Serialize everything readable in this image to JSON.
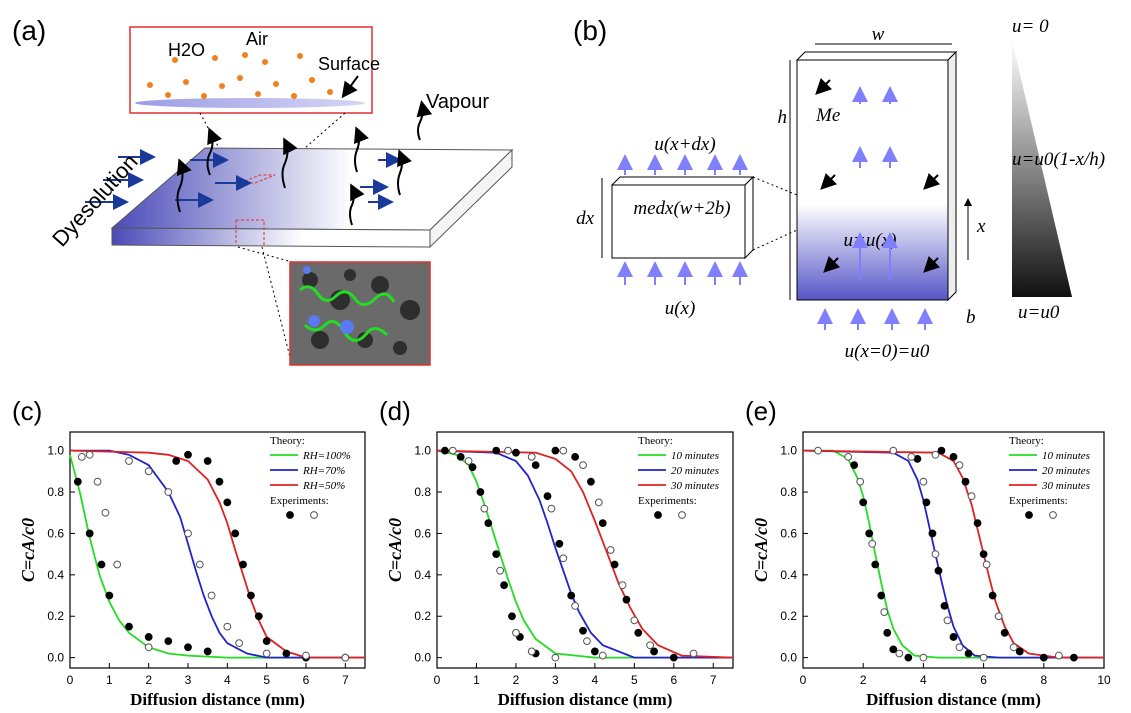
{
  "panels": {
    "a": {
      "label": "(a)",
      "h2o": "H2O",
      "air": "Air",
      "surface": "Surface",
      "vapour": "Vapour",
      "dye": "Dyesolution"
    },
    "b": {
      "label": "(b)",
      "w": "w",
      "h": "h",
      "me": "Me",
      "uxdx": "u(x+dx)",
      "dx": "dx",
      "element": "medx(w+2b)",
      "uux": "u=u(x)",
      "x": "x",
      "ux": "u(x)",
      "b": "b",
      "u0": "u(x=0)=u0",
      "top": "u= 0",
      "mid": "u=u0(1-x/h)",
      "bottom": "u=u0"
    }
  },
  "chart_data": [
    {
      "type": "line",
      "label": "(c)",
      "xlabel": "Diffusion distance (mm)",
      "ylabel": "C=cA/c0",
      "xlim": [
        0,
        7.5
      ],
      "ylim": [
        -0.05,
        1.09
      ],
      "xticks": [
        0,
        1,
        2,
        3,
        4,
        5,
        6,
        7
      ],
      "yticks": [
        {
          "value": 0,
          "label": "0.0"
        },
        {
          "value": 0.2,
          "label": "0.2"
        },
        {
          "value": 0.4,
          "label": "0.4"
        },
        {
          "value": 0.6,
          "label": "0.6"
        },
        {
          "value": 0.8,
          "label": "0.8"
        },
        {
          "value": 1,
          "label": "1.0"
        }
      ],
      "legend": {
        "position": "upper right",
        "theory_title": "Theory:",
        "experiments_title": "Experiments:"
      },
      "series": [
        {
          "name": "RH=100%",
          "kind": "line",
          "color": "#22dd22",
          "x": [
            0,
            0.25,
            0.5,
            0.75,
            1,
            1.25,
            1.5,
            2,
            2.5,
            3,
            4,
            5,
            6,
            7.5
          ],
          "values": [
            0.98,
            0.8,
            0.58,
            0.4,
            0.27,
            0.18,
            0.12,
            0.05,
            0.02,
            0.01,
            0,
            0,
            0,
            0
          ]
        },
        {
          "name": "RH=70%",
          "kind": "line",
          "color": "#2222cc",
          "x": [
            0,
            1,
            1.5,
            2,
            2.5,
            2.8,
            3,
            3.2,
            3.4,
            3.6,
            3.8,
            4,
            4.5,
            5,
            7.5
          ],
          "values": [
            1,
            1,
            0.98,
            0.93,
            0.8,
            0.68,
            0.55,
            0.42,
            0.3,
            0.2,
            0.12,
            0.07,
            0.02,
            0,
            0
          ]
        },
        {
          "name": "RH=50%",
          "kind": "line",
          "color": "#dd2222",
          "x": [
            0,
            2,
            2.5,
            3,
            3.5,
            3.8,
            4,
            4.2,
            4.4,
            4.6,
            4.8,
            5,
            5.5,
            6,
            7.5
          ],
          "values": [
            1,
            0.99,
            0.98,
            0.95,
            0.86,
            0.75,
            0.65,
            0.52,
            0.4,
            0.28,
            0.18,
            0.1,
            0.03,
            0,
            0
          ]
        },
        {
          "kind": "scatter",
          "marker": "filled",
          "color": "#000000",
          "x": [
            0.2,
            0.5,
            0.8,
            1,
            1.5,
            2,
            2.5,
            3,
            3.5,
            2.7,
            3,
            3.5,
            3.8,
            4,
            4.2,
            4.4,
            4.6,
            4.8,
            5,
            5.5,
            6,
            7
          ],
          "values": [
            0.85,
            0.6,
            0.45,
            0.3,
            0.15,
            0.1,
            0.08,
            0.05,
            0.03,
            0.95,
            0.98,
            0.95,
            0.85,
            0.75,
            0.6,
            0.45,
            0.3,
            0.2,
            0.08,
            0.02,
            0,
            0
          ]
        },
        {
          "kind": "scatter",
          "marker": "open",
          "color": "#555555",
          "x": [
            0.3,
            0.5,
            0.7,
            0.9,
            1.2,
            2,
            1.5,
            2,
            2.5,
            3,
            3.3,
            3.6,
            4,
            4.3,
            5,
            6,
            7
          ],
          "values": [
            0.97,
            0.98,
            0.85,
            0.7,
            0.45,
            0.05,
            0.95,
            0.9,
            0.8,
            0.6,
            0.45,
            0.3,
            0.15,
            0.07,
            0.02,
            0.01,
            0
          ]
        }
      ]
    },
    {
      "type": "line",
      "label": "(d)",
      "xlabel": "Diffusion distance (mm)",
      "ylabel": "C=cA/c0",
      "xlim": [
        0,
        7.5
      ],
      "ylim": [
        -0.05,
        1.09
      ],
      "xticks": [
        0,
        1,
        2,
        3,
        4,
        5,
        6,
        7
      ],
      "yticks": [
        {
          "value": 0,
          "label": "0.0"
        },
        {
          "value": 0.2,
          "label": "0.2"
        },
        {
          "value": 0.4,
          "label": "0.4"
        },
        {
          "value": 0.6,
          "label": "0.6"
        },
        {
          "value": 0.8,
          "label": "0.8"
        },
        {
          "value": 1,
          "label": "1.0"
        }
      ],
      "legend": {
        "position": "upper right",
        "theory_title": "Theory:",
        "experiments_title": "Experiments:"
      },
      "series": [
        {
          "name": "10 minutes",
          "kind": "line",
          "color": "#22dd22",
          "x": [
            0,
            0.5,
            0.8,
            1,
            1.2,
            1.4,
            1.6,
            1.8,
            2,
            2.2,
            2.5,
            3,
            4,
            7.5
          ],
          "values": [
            1,
            0.98,
            0.93,
            0.85,
            0.74,
            0.62,
            0.5,
            0.38,
            0.27,
            0.18,
            0.09,
            0.02,
            0,
            0
          ]
        },
        {
          "name": "20 minutes",
          "kind": "line",
          "color": "#2222cc",
          "x": [
            0,
            1.5,
            2,
            2.3,
            2.6,
            2.8,
            3,
            3.2,
            3.4,
            3.6,
            3.9,
            4.2,
            5,
            7.5
          ],
          "values": [
            1,
            0.99,
            0.95,
            0.88,
            0.76,
            0.65,
            0.53,
            0.42,
            0.31,
            0.22,
            0.12,
            0.06,
            0,
            0
          ]
        },
        {
          "name": "30 minutes",
          "kind": "line",
          "color": "#dd2222",
          "x": [
            0,
            2.5,
            3,
            3.4,
            3.7,
            4,
            4.2,
            4.4,
            4.6,
            4.9,
            5.2,
            5.6,
            6.2,
            7.5
          ],
          "values": [
            1,
            0.99,
            0.96,
            0.9,
            0.8,
            0.66,
            0.56,
            0.46,
            0.36,
            0.24,
            0.14,
            0.06,
            0.01,
            0
          ]
        },
        {
          "kind": "scatter",
          "marker": "filled",
          "color": "#000000",
          "x": [
            0.2,
            0.6,
            0.9,
            1.1,
            1.3,
            1.5,
            1.7,
            1.9,
            2.1,
            2.5,
            1.5,
            2,
            2.5,
            2.8,
            3.1,
            3.4,
            3.7,
            4,
            3,
            3.5,
            3.9,
            4.2,
            4.5,
            4.8,
            5.1,
            5.5,
            6
          ],
          "values": [
            1,
            0.97,
            0.92,
            0.8,
            0.65,
            0.5,
            0.35,
            0.2,
            0.1,
            0.02,
            1,
            0.99,
            0.93,
            0.78,
            0.55,
            0.3,
            0.13,
            0.03,
            1,
            0.97,
            0.85,
            0.65,
            0.45,
            0.28,
            0.12,
            0.03,
            0
          ]
        },
        {
          "kind": "scatter",
          "marker": "open",
          "color": "#555555",
          "x": [
            0.4,
            0.8,
            1.2,
            1.6,
            2,
            2.4,
            3,
            1.8,
            2.4,
            2.9,
            3.2,
            3.5,
            3.8,
            4.2,
            3.2,
            3.7,
            4.1,
            4.4,
            4.7,
            5,
            5.4,
            6.5
          ],
          "values": [
            1,
            0.95,
            0.72,
            0.42,
            0.12,
            0.03,
            0,
            1,
            0.97,
            0.72,
            0.48,
            0.25,
            0.08,
            0.01,
            1,
            0.93,
            0.75,
            0.52,
            0.35,
            0.18,
            0.06,
            0.02
          ]
        }
      ]
    },
    {
      "type": "line",
      "label": "(e)",
      "xlabel": "Diffusion distance (mm)",
      "ylabel": "C=cA/c0",
      "xlim": [
        0,
        10
      ],
      "ylim": [
        -0.05,
        1.09
      ],
      "xticks": [
        0,
        2,
        4,
        6,
        8,
        10
      ],
      "yticks": [
        {
          "value": 0,
          "label": "0.0"
        },
        {
          "value": 0.2,
          "label": "0.2"
        },
        {
          "value": 0.4,
          "label": "0.4"
        },
        {
          "value": 0.6,
          "label": "0.6"
        },
        {
          "value": 0.8,
          "label": "0.8"
        },
        {
          "value": 1,
          "label": "1.0"
        }
      ],
      "legend": {
        "position": "upper right",
        "theory_title": "Theory:",
        "experiments_title": "Experiments:"
      },
      "series": [
        {
          "name": "10 minutes",
          "kind": "line",
          "color": "#22dd22",
          "x": [
            0,
            1,
            1.5,
            1.8,
            2,
            2.2,
            2.4,
            2.6,
            2.8,
            3,
            3.3,
            3.7,
            4.5,
            10
          ],
          "values": [
            1,
            1,
            0.96,
            0.87,
            0.78,
            0.65,
            0.5,
            0.36,
            0.23,
            0.14,
            0.06,
            0.01,
            0,
            0
          ]
        },
        {
          "name": "20 minutes",
          "kind": "line",
          "color": "#2222cc",
          "x": [
            0,
            3,
            3.5,
            3.8,
            4,
            4.2,
            4.4,
            4.6,
            4.8,
            5,
            5.3,
            5.7,
            6.5,
            10
          ],
          "values": [
            1,
            0.99,
            0.95,
            0.86,
            0.76,
            0.63,
            0.5,
            0.37,
            0.25,
            0.15,
            0.06,
            0.01,
            0,
            0
          ]
        },
        {
          "name": "30 minutes",
          "kind": "line",
          "color": "#dd2222",
          "x": [
            0,
            4.5,
            5,
            5.3,
            5.6,
            5.8,
            6,
            6.2,
            6.4,
            6.7,
            7,
            7.5,
            8.5,
            10
          ],
          "values": [
            1,
            0.99,
            0.95,
            0.87,
            0.74,
            0.62,
            0.5,
            0.38,
            0.27,
            0.15,
            0.07,
            0.02,
            0,
            0
          ]
        },
        {
          "kind": "scatter",
          "marker": "filled",
          "color": "#000000",
          "x": [
            1.7,
            2,
            2.2,
            2.4,
            2.6,
            2.8,
            3,
            3.5,
            3.8,
            4.1,
            4.3,
            4.5,
            4.7,
            5,
            5.5,
            4.6,
            5,
            5.4,
            5.8,
            6,
            6.3,
            6.7,
            7.2,
            8,
            9
          ],
          "values": [
            0.93,
            0.75,
            0.6,
            0.45,
            0.3,
            0.12,
            0.04,
            0,
            0.96,
            0.75,
            0.6,
            0.42,
            0.25,
            0.1,
            0.02,
            1,
            0.97,
            0.85,
            0.65,
            0.5,
            0.3,
            0.12,
            0.03,
            0,
            0
          ]
        },
        {
          "kind": "scatter",
          "marker": "open",
          "color": "#555555",
          "x": [
            0.5,
            1.5,
            1.9,
            2.3,
            2.7,
            3.2,
            4,
            3,
            3.6,
            4,
            4.4,
            4.8,
            5.2,
            6,
            4.4,
            5.2,
            5.6,
            6.1,
            6.5,
            7,
            8.5
          ],
          "values": [
            1,
            0.97,
            0.85,
            0.55,
            0.22,
            0.02,
            0,
            1,
            0.97,
            0.85,
            0.5,
            0.18,
            0.05,
            0,
            0.98,
            0.93,
            0.78,
            0.45,
            0.2,
            0.05,
            0.01
          ]
        }
      ]
    }
  ]
}
